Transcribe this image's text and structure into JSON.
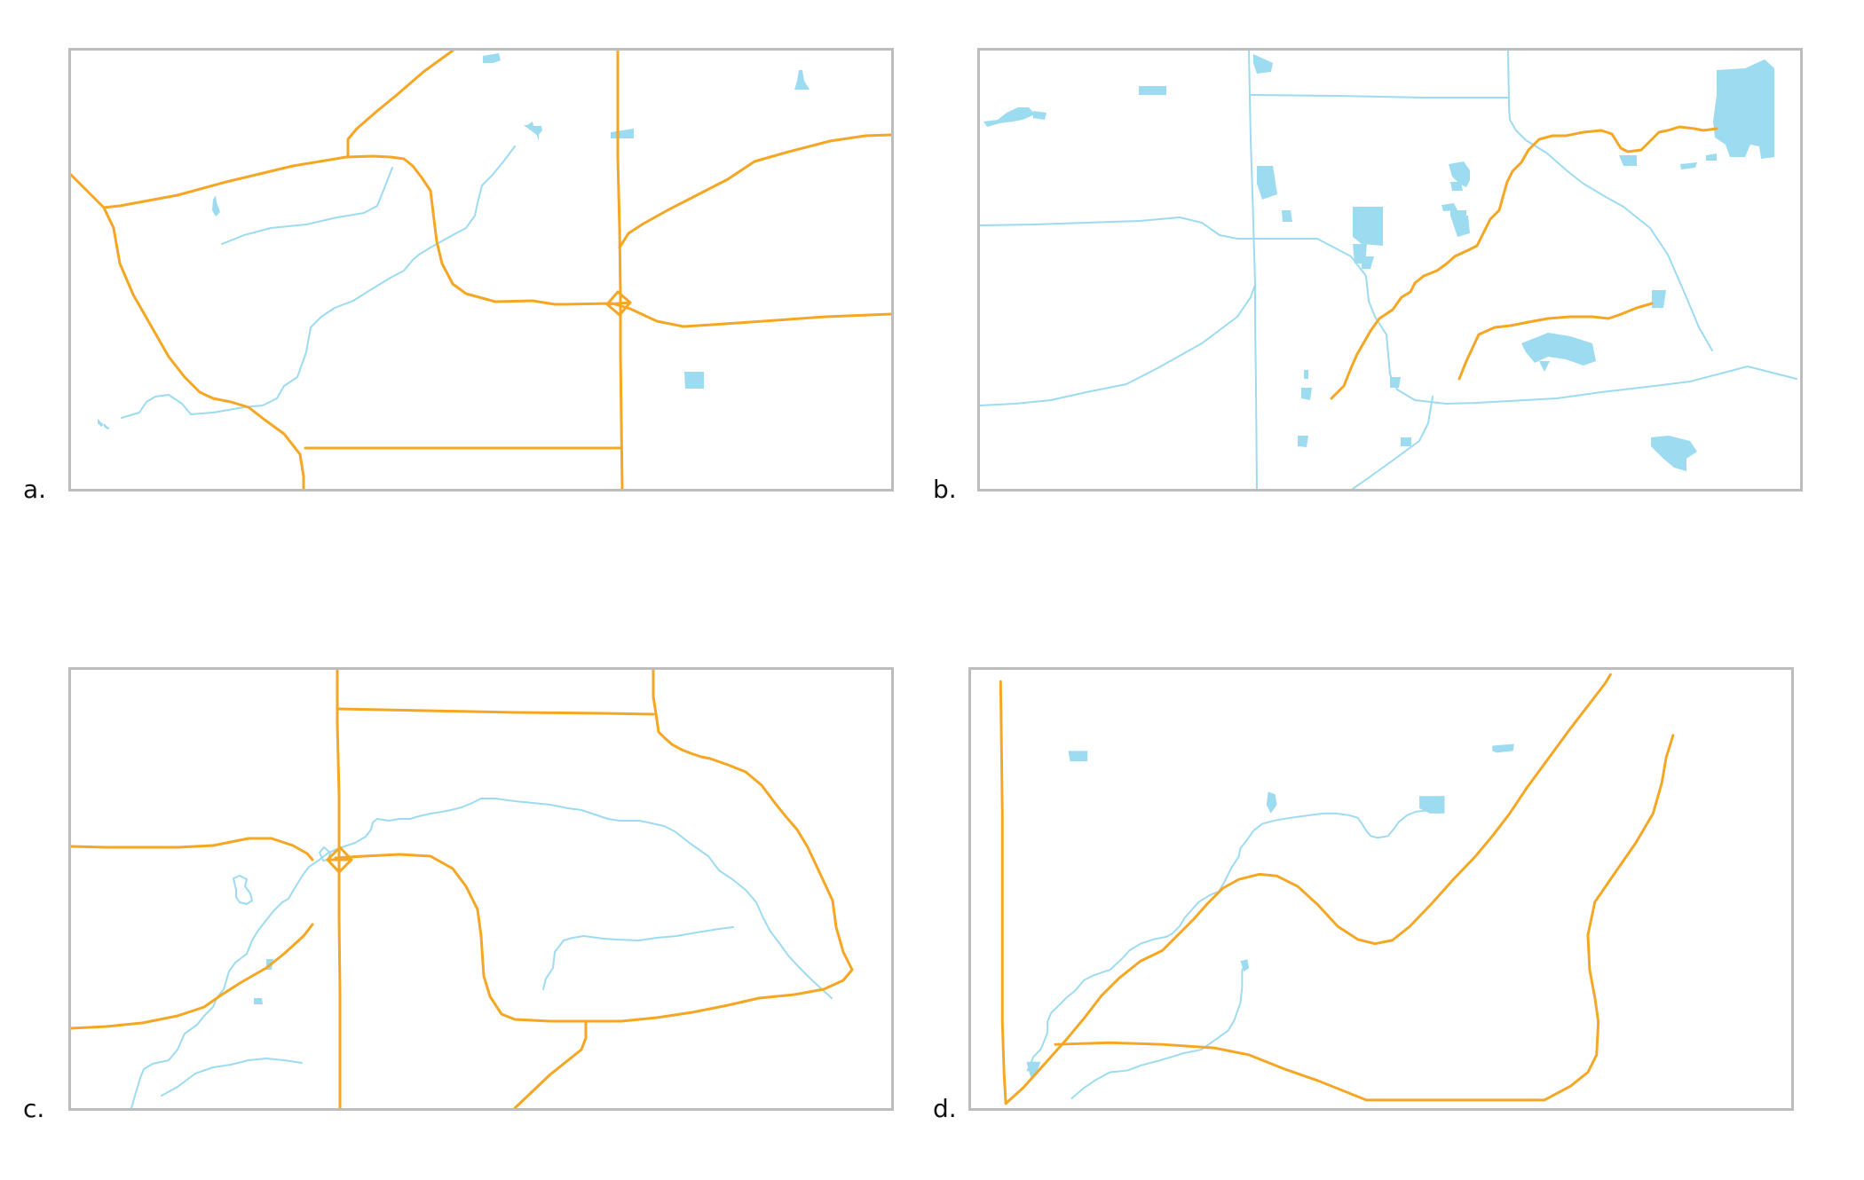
{
  "colors": {
    "road": "#f5a623",
    "water": "#9ddbf0",
    "frame": "#bdbdbd"
  },
  "panels": [
    {
      "id": "a",
      "label": "a."
    },
    {
      "id": "b",
      "label": "b."
    },
    {
      "id": "c",
      "label": "c."
    },
    {
      "id": "d",
      "label": "d."
    }
  ]
}
